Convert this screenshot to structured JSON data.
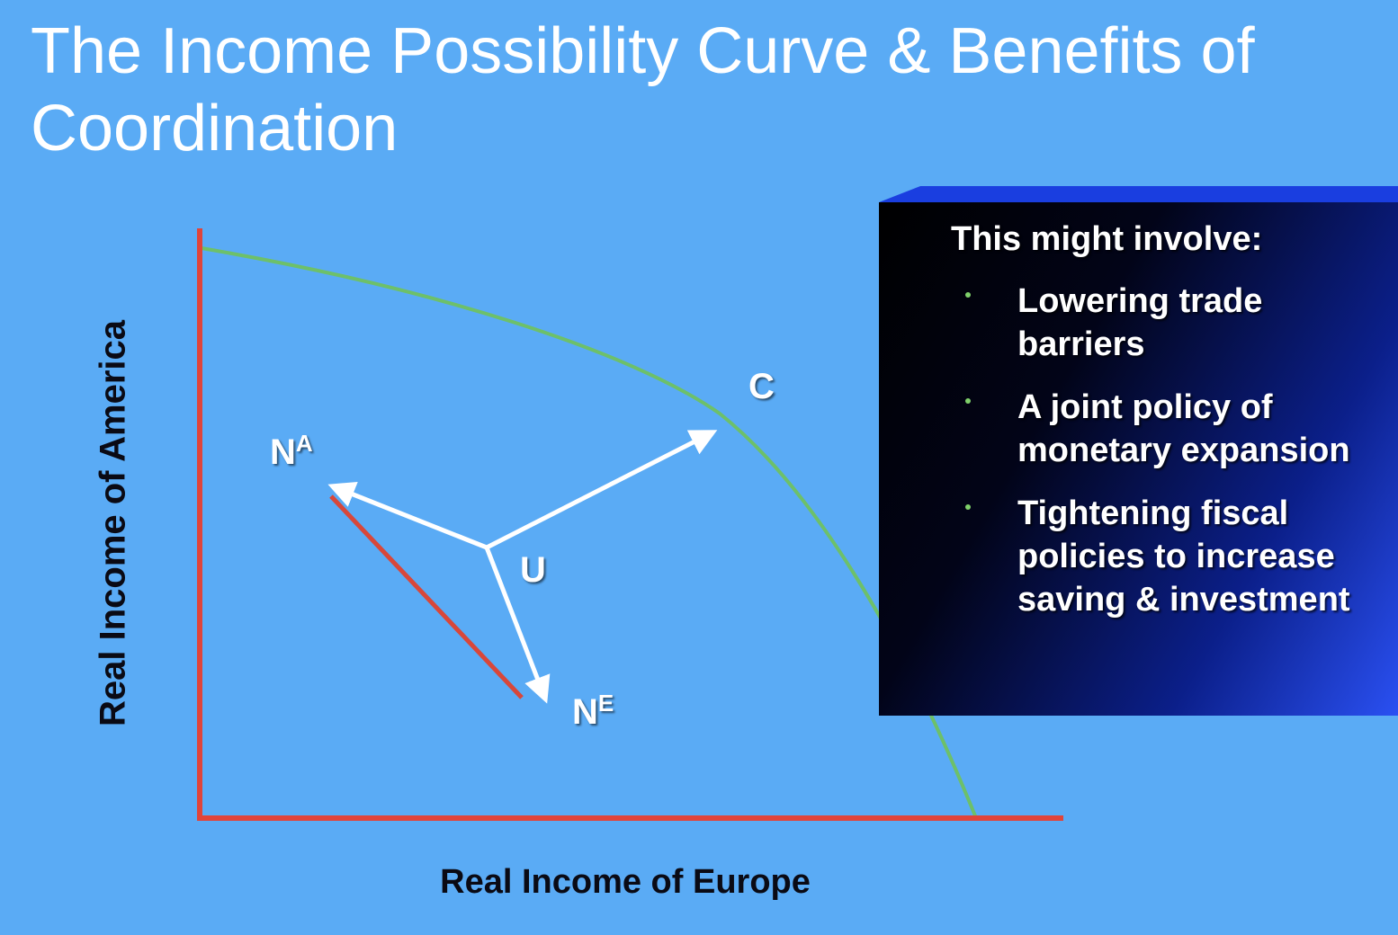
{
  "slide": {
    "title": "The Income Possibility Curve & Benefits of Coordination"
  },
  "diagram": {
    "y_axis_label": "Real Income of America",
    "x_axis_label": "Real Income of Europe",
    "points": {
      "na": {
        "main": "N",
        "sup": "A"
      },
      "ne": {
        "main": "N",
        "sup": "E"
      },
      "u": "U",
      "c": "C"
    },
    "colors": {
      "background": "#5aabf5",
      "axes": "#e0443a",
      "curve": "#6dc06a",
      "arrows": "#ffffff",
      "segment": "#d8473a"
    }
  },
  "info_box": {
    "heading": "This might involve:",
    "items": [
      "Lowering trade barriers",
      "A joint policy of monetary expansion",
      "Tightening fiscal policies to increase saving & investment"
    ]
  }
}
